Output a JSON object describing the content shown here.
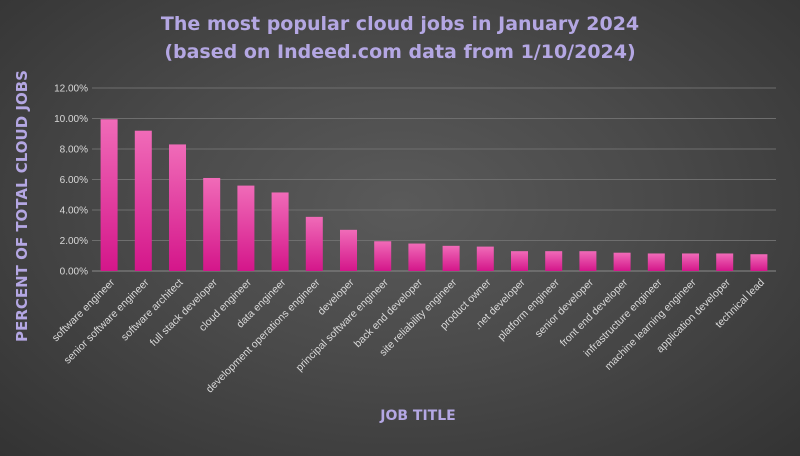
{
  "chart_data": {
    "type": "bar",
    "title": "The most popular cloud jobs in January 2024",
    "subtitle": "(based on Indeed.com data from 1/10/2024)",
    "xlabel": "JOB TITLE",
    "ylabel": "PERCENT OF TOTAL CLOUD JOBS",
    "ylim": [
      0,
      12
    ],
    "yticks": [
      "0.00%",
      "2.00%",
      "4.00%",
      "6.00%",
      "8.00%",
      "10.00%",
      "12.00%"
    ],
    "grid": true,
    "categories": [
      "software engineer",
      "senior software engineer",
      "software architect",
      "full stack developer",
      "cloud engineer",
      "data engineer",
      "development operations engineer",
      "developer",
      "principal software engineer",
      "back end developer",
      "site reliability engineer",
      "product owner",
      ".net developer",
      "platform engineer",
      "senior developer",
      "front end developer",
      "infrastructure engineer",
      "machine learning engineer",
      "application developer",
      "technical lead"
    ],
    "values": [
      9.95,
      9.2,
      8.3,
      6.1,
      5.6,
      5.15,
      3.55,
      2.7,
      1.95,
      1.8,
      1.65,
      1.6,
      1.3,
      1.3,
      1.3,
      1.2,
      1.15,
      1.15,
      1.15,
      1.1
    ],
    "colors": {
      "bar_top": "#f06bb8",
      "bar_bottom": "#d4168a",
      "title": "#b4a7e3",
      "text": "#d9d9d9"
    }
  }
}
